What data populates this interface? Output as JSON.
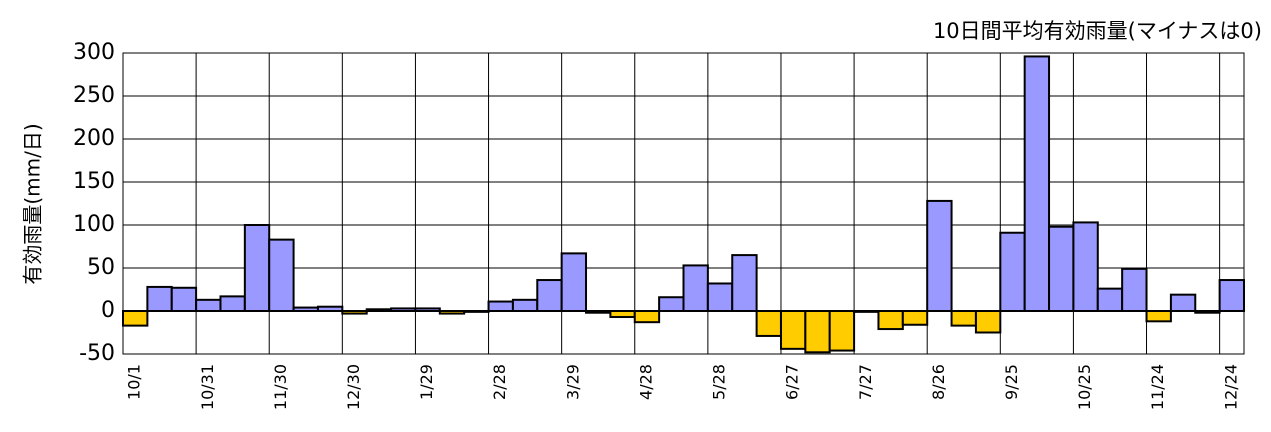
{
  "chart_data": {
    "type": "bar",
    "title": "10日間平均有効雨量(マイナスは0)",
    "y_label": "有効雨量(mm/日)",
    "categories": [
      "10/1",
      null,
      null,
      "10/31",
      null,
      null,
      "11/30",
      null,
      null,
      "12/30",
      null,
      null,
      "1/29",
      null,
      null,
      "2/28",
      null,
      null,
      "3/29",
      null,
      null,
      "4/28",
      null,
      null,
      "5/28",
      null,
      null,
      "6/27",
      null,
      null,
      "7/27",
      null,
      null,
      "8/26",
      null,
      null,
      "9/25",
      null,
      null,
      "10/25",
      null,
      null,
      "11/24",
      null,
      null,
      "12/24"
    ],
    "values": [
      -17,
      28,
      27,
      13,
      17,
      100,
      83,
      4,
      5,
      -3,
      2,
      3,
      3,
      -3,
      -1,
      11,
      13,
      36,
      67,
      -2,
      -7,
      -13,
      16,
      53,
      32,
      65,
      -29,
      -44,
      -48,
      -46,
      -1,
      -21,
      -16,
      128,
      -17,
      -25,
      91,
      296,
      98,
      103,
      26,
      49,
      -12,
      19,
      -2,
      36
    ],
    "color_positive": "#9999ff",
    "color_negative": "#ffcc00",
    "ylim": [
      -50,
      300
    ],
    "yticks": [
      -50,
      0,
      50,
      100,
      150,
      200,
      250,
      300
    ],
    "grid": true
  }
}
